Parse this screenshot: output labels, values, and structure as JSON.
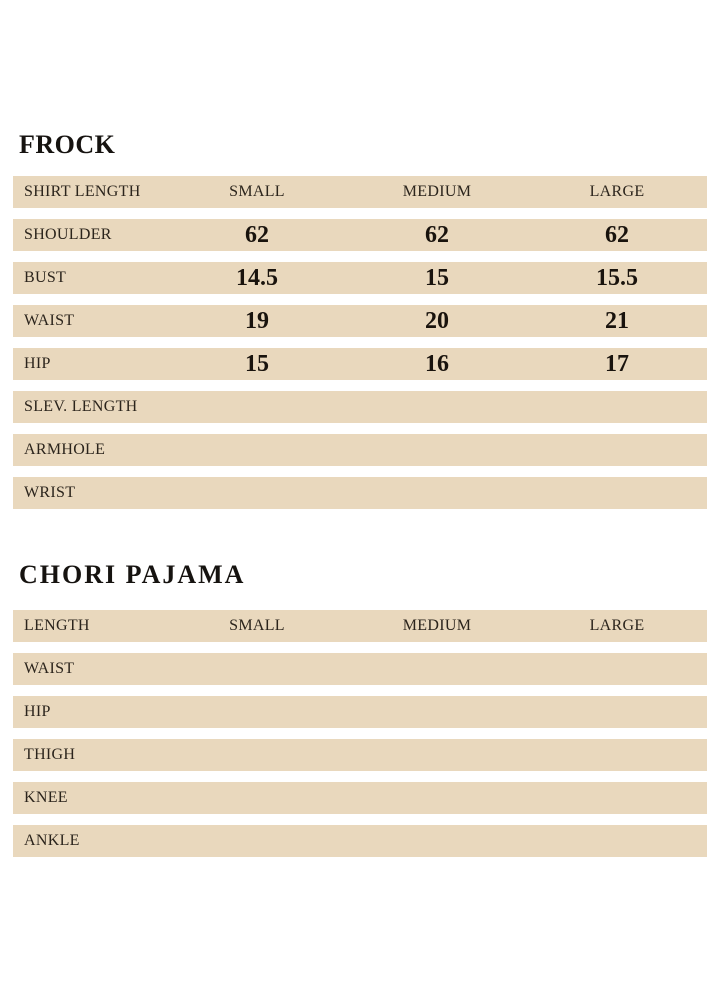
{
  "colors": {
    "row_bg": "#e9d8bd",
    "label_text": "#2b241c",
    "value_text": "#19130d",
    "title_text": "#161310",
    "page_bg": "#ffffff"
  },
  "tables": [
    {
      "title": "FROCK",
      "columns": [
        "SHIRT LENGTH",
        "SMALL",
        "MEDIUM",
        "LARGE"
      ],
      "rows": [
        {
          "label": "SHOULDER",
          "values": [
            "62",
            "62",
            "62"
          ]
        },
        {
          "label": "BUST",
          "values": [
            "14.5",
            "15",
            "15.5"
          ]
        },
        {
          "label": "WAIST",
          "values": [
            "19",
            "20",
            "21"
          ]
        },
        {
          "label": "HIP",
          "values": [
            "15",
            "16",
            "17"
          ]
        },
        {
          "label": "SLEV. LENGTH",
          "values": [
            "",
            "",
            ""
          ]
        },
        {
          "label": "ARMHOLE",
          "values": [
            "",
            "",
            ""
          ]
        },
        {
          "label": "WRIST",
          "values": [
            "",
            "",
            ""
          ]
        }
      ]
    },
    {
      "title": "CHORI PAJAMA",
      "columns": [
        "LENGTH",
        "SMALL",
        "MEDIUM",
        "LARGE"
      ],
      "rows": [
        {
          "label": "WAIST",
          "values": [
            "",
            "",
            ""
          ]
        },
        {
          "label": "HIP",
          "values": [
            "",
            "",
            ""
          ]
        },
        {
          "label": "THIGH",
          "values": [
            "",
            "",
            ""
          ]
        },
        {
          "label": "KNEE",
          "values": [
            "",
            "",
            ""
          ]
        },
        {
          "label": "ANKLE",
          "values": [
            "",
            "",
            ""
          ]
        }
      ]
    }
  ]
}
